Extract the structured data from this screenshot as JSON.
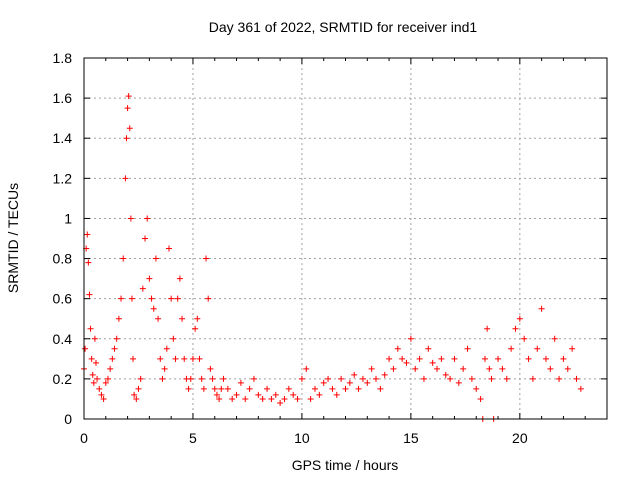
{
  "chart_data": {
    "type": "scatter",
    "title": "Day 361 of 2022, SRMTID for receiver ind1",
    "xlabel": "GPS time / hours",
    "ylabel": "SRMTID / TECUs",
    "xlim": [
      0,
      24
    ],
    "ylim": [
      0,
      1.8
    ],
    "xticks": [
      0,
      5,
      10,
      15,
      20
    ],
    "xtick_labels": [
      "0",
      "5",
      "10",
      "15",
      "20"
    ],
    "yticks": [
      0,
      0.2,
      0.4,
      0.6,
      0.8,
      1,
      1.2,
      1.4,
      1.6,
      1.8
    ],
    "ytick_labels": [
      "0",
      "0.2",
      "0.4",
      "0.6",
      "0.8",
      "1",
      "1.2",
      "1.4",
      "1.6",
      "1.8"
    ],
    "grid": true,
    "marker": "+",
    "color": "#ff0000",
    "series": [
      {
        "name": "SRMTID",
        "x": [
          0.0,
          0.05,
          0.1,
          0.15,
          0.2,
          0.25,
          0.3,
          0.35,
          0.4,
          0.45,
          0.5,
          0.55,
          0.6,
          0.7,
          0.8,
          0.9,
          1.0,
          1.1,
          1.2,
          1.3,
          1.4,
          1.5,
          1.6,
          1.7,
          1.8,
          1.9,
          1.95,
          2.0,
          2.05,
          2.1,
          2.15,
          2.2,
          2.25,
          2.3,
          2.4,
          2.5,
          2.6,
          2.7,
          2.8,
          2.9,
          3.0,
          3.1,
          3.2,
          3.3,
          3.4,
          3.5,
          3.6,
          3.7,
          3.8,
          3.9,
          4.0,
          4.1,
          4.2,
          4.3,
          4.4,
          4.5,
          4.6,
          4.7,
          4.8,
          4.9,
          5.0,
          5.1,
          5.2,
          5.3,
          5.4,
          5.5,
          5.6,
          5.7,
          5.8,
          5.9,
          6.0,
          6.1,
          6.2,
          6.3,
          6.4,
          6.6,
          6.8,
          7.0,
          7.2,
          7.4,
          7.6,
          7.8,
          8.0,
          8.2,
          8.4,
          8.6,
          8.8,
          9.0,
          9.2,
          9.4,
          9.6,
          9.8,
          10.0,
          10.2,
          10.4,
          10.6,
          10.8,
          11.0,
          11.2,
          11.4,
          11.6,
          11.8,
          12.0,
          12.2,
          12.4,
          12.6,
          12.8,
          13.0,
          13.2,
          13.4,
          13.6,
          13.8,
          14.0,
          14.2,
          14.4,
          14.6,
          14.8,
          15.0,
          15.2,
          15.4,
          15.6,
          15.8,
          16.0,
          16.2,
          16.4,
          16.6,
          16.8,
          17.0,
          17.2,
          17.4,
          17.6,
          17.8,
          18.0,
          18.2,
          18.3,
          18.4,
          18.5,
          18.6,
          18.7,
          18.8,
          19.0,
          19.2,
          19.4,
          19.6,
          19.8,
          20.0,
          20.2,
          20.4,
          20.6,
          20.8,
          21.0,
          21.2,
          21.4,
          21.6,
          21.8,
          22.0,
          22.2,
          22.4,
          22.6,
          22.8
        ],
        "y": [
          0.25,
          0.35,
          0.85,
          0.92,
          0.78,
          0.62,
          0.45,
          0.3,
          0.22,
          0.18,
          0.4,
          0.28,
          0.2,
          0.15,
          0.12,
          0.1,
          0.18,
          0.2,
          0.25,
          0.3,
          0.35,
          0.4,
          0.5,
          0.6,
          0.8,
          1.2,
          1.4,
          1.55,
          1.61,
          1.45,
          1.0,
          0.6,
          0.3,
          0.12,
          0.1,
          0.15,
          0.2,
          0.65,
          0.9,
          1.0,
          0.7,
          0.6,
          0.55,
          0.8,
          0.5,
          0.3,
          0.2,
          0.25,
          0.35,
          0.85,
          0.6,
          0.4,
          0.3,
          0.6,
          0.7,
          0.5,
          0.3,
          0.2,
          0.15,
          0.2,
          0.3,
          0.45,
          0.5,
          0.3,
          0.2,
          0.15,
          0.8,
          0.6,
          0.25,
          0.2,
          0.15,
          0.12,
          0.1,
          0.15,
          0.2,
          0.15,
          0.1,
          0.12,
          0.18,
          0.1,
          0.15,
          0.2,
          0.12,
          0.1,
          0.15,
          0.1,
          0.12,
          0.08,
          0.1,
          0.15,
          0.12,
          0.1,
          0.2,
          0.25,
          0.1,
          0.15,
          0.12,
          0.18,
          0.2,
          0.15,
          0.12,
          0.2,
          0.15,
          0.18,
          0.22,
          0.15,
          0.2,
          0.18,
          0.25,
          0.2,
          0.15,
          0.22,
          0.3,
          0.25,
          0.35,
          0.3,
          0.28,
          0.4,
          0.25,
          0.3,
          0.2,
          0.35,
          0.28,
          0.25,
          0.3,
          0.22,
          0.2,
          0.3,
          0.18,
          0.25,
          0.35,
          0.2,
          0.15,
          0.1,
          0.0,
          0.3,
          0.45,
          0.25,
          0.2,
          0.0,
          0.3,
          0.25,
          0.2,
          0.35,
          0.45,
          0.5,
          0.4,
          0.3,
          0.2,
          0.35,
          0.55,
          0.3,
          0.25,
          0.4,
          0.2,
          0.3,
          0.25,
          0.35,
          0.2,
          0.15
        ]
      }
    ]
  }
}
